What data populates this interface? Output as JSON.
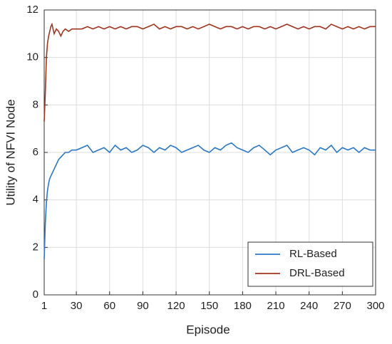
{
  "chart_data": {
    "type": "line",
    "x_label": "Episode",
    "y_label": "Utility of NFVI Node",
    "x": [
      1,
      2,
      3,
      4,
      5,
      6,
      7,
      8,
      10,
      12,
      14,
      16,
      18,
      20,
      23,
      26,
      30,
      35,
      40,
      45,
      50,
      55,
      60,
      65,
      70,
      75,
      80,
      85,
      90,
      95,
      100,
      105,
      110,
      115,
      120,
      125,
      130,
      135,
      140,
      145,
      150,
      155,
      160,
      165,
      170,
      175,
      180,
      185,
      190,
      195,
      200,
      205,
      210,
      215,
      220,
      225,
      230,
      235,
      240,
      245,
      250,
      255,
      260,
      265,
      270,
      275,
      280,
      285,
      290,
      295,
      300
    ],
    "series": [
      {
        "name": "RL-Based",
        "color": "#2a78c8",
        "values": [
          1.5,
          3.0,
          3.9,
          4.4,
          4.7,
          4.9,
          5.0,
          5.1,
          5.3,
          5.5,
          5.7,
          5.8,
          5.9,
          6.0,
          6.0,
          6.1,
          6.1,
          6.2,
          6.3,
          6.0,
          6.1,
          6.2,
          6.0,
          6.3,
          6.1,
          6.2,
          6.0,
          6.1,
          6.3,
          6.2,
          6.0,
          6.2,
          6.1,
          6.3,
          6.2,
          6.0,
          6.1,
          6.2,
          6.3,
          6.1,
          6.0,
          6.2,
          6.1,
          6.3,
          6.4,
          6.2,
          6.1,
          6.0,
          6.2,
          6.3,
          6.1,
          5.9,
          6.1,
          6.2,
          6.3,
          6.0,
          6.1,
          6.2,
          6.1,
          5.9,
          6.2,
          6.1,
          6.3,
          6.0,
          6.2,
          6.1,
          6.2,
          6.0,
          6.2,
          6.1,
          6.1
        ]
      },
      {
        "name": "DRL-Based",
        "color": "#a0351e",
        "values": [
          7.3,
          8.5,
          10.0,
          10.6,
          10.9,
          11.1,
          11.3,
          11.4,
          11.0,
          11.2,
          11.1,
          10.9,
          11.1,
          11.2,
          11.1,
          11.2,
          11.2,
          11.2,
          11.3,
          11.2,
          11.3,
          11.2,
          11.3,
          11.2,
          11.3,
          11.2,
          11.3,
          11.3,
          11.2,
          11.3,
          11.4,
          11.2,
          11.3,
          11.2,
          11.3,
          11.3,
          11.2,
          11.3,
          11.2,
          11.3,
          11.4,
          11.3,
          11.2,
          11.3,
          11.3,
          11.2,
          11.3,
          11.2,
          11.3,
          11.3,
          11.2,
          11.3,
          11.2,
          11.3,
          11.4,
          11.3,
          11.2,
          11.3,
          11.2,
          11.3,
          11.3,
          11.2,
          11.4,
          11.3,
          11.2,
          11.3,
          11.2,
          11.3,
          11.2,
          11.3,
          11.3
        ]
      }
    ],
    "xlim": [
      1,
      300
    ],
    "xticks": [
      1,
      30,
      60,
      90,
      120,
      150,
      180,
      210,
      240,
      270,
      300
    ],
    "ylim": [
      0,
      12
    ],
    "yticks": [
      0,
      2,
      4,
      6,
      8,
      10,
      12
    ],
    "grid": true,
    "legend": "lower right"
  }
}
